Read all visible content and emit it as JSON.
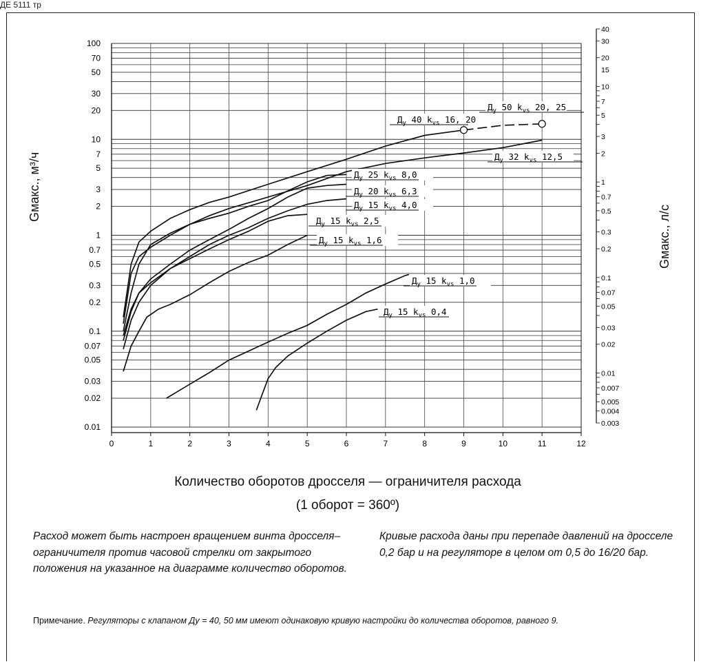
{
  "top_caption": "ДЕ 5111 тр",
  "chart_data": {
    "type": "line",
    "title": "",
    "xlabel_line1": "Количество оборотов дросселя — ограничителя расхода",
    "xlabel_line2": "(1 оборот = 360º)",
    "ylabel_left": "Gмакс., м³/ч",
    "ylabel_right": "Gмакс., л/с",
    "xlim": [
      0,
      12
    ],
    "ylim": [
      0.01,
      100
    ],
    "y_scale": "log",
    "grid": true,
    "x_ticks": [
      "0",
      "1",
      "2",
      "3",
      "4",
      "5",
      "6",
      "7",
      "8",
      "9",
      "10",
      "11",
      "12"
    ],
    "y_ticks_left": [
      {
        "v": 100,
        "t": "100"
      },
      {
        "v": 70,
        "t": "70"
      },
      {
        "v": 50,
        "t": "50"
      },
      {
        "v": 30,
        "t": "30"
      },
      {
        "v": 20,
        "t": "20"
      },
      {
        "v": 10,
        "t": "10"
      },
      {
        "v": 7,
        "t": "7"
      },
      {
        "v": 5,
        "t": "5"
      },
      {
        "v": 3,
        "t": "3"
      },
      {
        "v": 2,
        "t": "2"
      },
      {
        "v": 1,
        "t": "1"
      },
      {
        "v": 0.7,
        "t": "0.7"
      },
      {
        "v": 0.5,
        "t": "0.5"
      },
      {
        "v": 0.3,
        "t": "0.3"
      },
      {
        "v": 0.2,
        "t": "0.2"
      },
      {
        "v": 0.1,
        "t": "0.1"
      },
      {
        "v": 0.07,
        "t": "0.07"
      },
      {
        "v": 0.05,
        "t": "0.05"
      },
      {
        "v": 0.03,
        "t": "0.03"
      },
      {
        "v": 0.02,
        "t": "0.02"
      },
      {
        "v": 0.01,
        "t": "0.01"
      }
    ],
    "y_ticks_right": [
      {
        "v": 40,
        "t": "40"
      },
      {
        "v": 30,
        "t": "30"
      },
      {
        "v": 20,
        "t": "20"
      },
      {
        "v": 15,
        "t": "15"
      },
      {
        "v": 10,
        "t": "10"
      },
      {
        "v": 7,
        "t": "7"
      },
      {
        "v": 5,
        "t": "5"
      },
      {
        "v": 3,
        "t": "3"
      },
      {
        "v": 2,
        "t": "2"
      },
      {
        "v": 1,
        "t": "1"
      },
      {
        "v": 0.7,
        "t": "0.7"
      },
      {
        "v": 0.5,
        "t": "0.5"
      },
      {
        "v": 0.3,
        "t": "0.3"
      },
      {
        "v": 0.2,
        "t": "0.2"
      },
      {
        "v": 0.1,
        "t": "0.1"
      },
      {
        "v": 0.07,
        "t": "0.07"
      },
      {
        "v": 0.05,
        "t": "0.05"
      },
      {
        "v": 0.03,
        "t": "0.03"
      },
      {
        "v": 0.02,
        "t": "0.02"
      },
      {
        "v": 0.01,
        "t": "0.01"
      },
      {
        "v": 0.007,
        "t": "0.007"
      },
      {
        "v": 0.005,
        "t": "0.005"
      },
      {
        "v": 0.004,
        "t": "0.004"
      },
      {
        "v": 0.003,
        "t": "0.003"
      }
    ],
    "series": [
      {
        "name": "Ду 50 kvs 20, 25",
        "label_pre": "Д",
        "label_sub1": "у",
        "label_mid": " 50 k",
        "label_sub2": "vs",
        "label_post": " 20, 25",
        "points": [
          [
            0.3,
            0.14
          ],
          [
            0.5,
            0.5
          ],
          [
            0.7,
            0.85
          ],
          [
            1,
            1.1
          ],
          [
            1.5,
            1.5
          ],
          [
            2,
            1.85
          ],
          [
            2.5,
            2.2
          ],
          [
            3,
            2.5
          ],
          [
            4,
            3.4
          ],
          [
            5,
            4.6
          ],
          [
            6,
            6.2
          ],
          [
            7,
            8.5
          ],
          [
            8,
            11
          ],
          [
            9,
            12.5
          ]
        ],
        "dashed_points": [
          [
            9,
            12.5
          ],
          [
            10,
            14
          ],
          [
            11,
            14.5
          ]
        ],
        "markers": [
          [
            9,
            12.5
          ],
          [
            11,
            14.5
          ]
        ],
        "label_at": [
          11,
          20
        ]
      },
      {
        "name": "Ду 40 kvs 16, 20",
        "label_pre": "Д",
        "label_sub1": "у",
        "label_mid": " 40 k",
        "label_sub2": "vs",
        "label_post": " 16, 20",
        "points": [],
        "dashed_points": [],
        "markers": [],
        "label_at": [
          9,
          12.5
        ]
      },
      {
        "name": "Ду 32 kvs 12,5",
        "label_pre": "Д",
        "label_sub1": "у",
        "label_mid": " 32 k",
        "label_sub2": "vs",
        "label_post": " 12,5",
        "points": [
          [
            0.3,
            0.12
          ],
          [
            0.5,
            0.4
          ],
          [
            0.7,
            0.6
          ],
          [
            1,
            0.75
          ],
          [
            1.5,
            1.0
          ],
          [
            2,
            1.3
          ],
          [
            2.5,
            1.6
          ],
          [
            3,
            1.9
          ],
          [
            4,
            2.5
          ],
          [
            5,
            3.3
          ],
          [
            6,
            4.6
          ],
          [
            7,
            5.6
          ],
          [
            8,
            6.4
          ],
          [
            9,
            7.2
          ],
          [
            10,
            8.2
          ],
          [
            11,
            9.8
          ]
        ],
        "dashed_points": [],
        "markers": [],
        "label_at": [
          11,
          7
        ]
      },
      {
        "name": "Ду 25 kvs 8,0",
        "label_pre": "Д",
        "label_sub1": "у",
        "label_mid": " 25 k",
        "label_sub2": "vs",
        "label_post": " 8,0",
        "points": [
          [
            0.3,
            0.1
          ],
          [
            0.5,
            0.25
          ],
          [
            0.7,
            0.5
          ],
          [
            1,
            0.8
          ],
          [
            1.5,
            1.05
          ],
          [
            2,
            1.3
          ],
          [
            2.5,
            1.5
          ],
          [
            3,
            1.7
          ],
          [
            3.5,
            2.0
          ],
          [
            4,
            2.3
          ],
          [
            4.5,
            2.9
          ],
          [
            5,
            3.6
          ],
          [
            5.5,
            4.2
          ],
          [
            6,
            4.3
          ]
        ],
        "dashed_points": [],
        "markers": [],
        "label_at": [
          6,
          4.3
        ]
      },
      {
        "name": "Ду 20 kvs 6,3",
        "label_pre": "Д",
        "label_sub1": "у",
        "label_mid": " 20 k",
        "label_sub2": "vs",
        "label_post": " 6,3",
        "points": [
          [
            0.3,
            0.08
          ],
          [
            0.5,
            0.16
          ],
          [
            0.7,
            0.25
          ],
          [
            1,
            0.35
          ],
          [
            1.5,
            0.5
          ],
          [
            2,
            0.7
          ],
          [
            2.5,
            0.9
          ],
          [
            3,
            1.15
          ],
          [
            3.5,
            1.5
          ],
          [
            4,
            1.9
          ],
          [
            4.5,
            2.5
          ],
          [
            5,
            3.1
          ],
          [
            5.5,
            3.3
          ],
          [
            6,
            3.4
          ]
        ],
        "dashed_points": [],
        "markers": [],
        "label_at": [
          6,
          3.4
        ]
      },
      {
        "name": "Ду 15 kvs 4,0",
        "label_pre": "Д",
        "label_sub1": "у",
        "label_mid": " 15 k",
        "label_sub2": "vs",
        "label_post": " 4,0",
        "points": [
          [
            0.3,
            0.065
          ],
          [
            0.5,
            0.13
          ],
          [
            0.7,
            0.2
          ],
          [
            1,
            0.3
          ],
          [
            1.5,
            0.45
          ],
          [
            2,
            0.6
          ],
          [
            2.5,
            0.8
          ],
          [
            3,
            1.0
          ],
          [
            3.5,
            1.2
          ],
          [
            4,
            1.5
          ],
          [
            4.5,
            1.8
          ],
          [
            5,
            2.1
          ],
          [
            5.5,
            2.3
          ],
          [
            6,
            2.4
          ]
        ],
        "dashed_points": [],
        "markers": [],
        "label_at": [
          6,
          2.4
        ]
      },
      {
        "name": "Ду 15 kvs 2,5",
        "label_pre": "Д",
        "label_sub1": "у",
        "label_mid": " 15 k",
        "label_sub2": "vs",
        "label_post": " 2,5",
        "points": [
          [
            0.3,
            0.09
          ],
          [
            0.5,
            0.17
          ],
          [
            0.7,
            0.25
          ],
          [
            1,
            0.32
          ],
          [
            1.5,
            0.45
          ],
          [
            2,
            0.57
          ],
          [
            2.5,
            0.72
          ],
          [
            3,
            0.9
          ],
          [
            3.5,
            1.1
          ],
          [
            4,
            1.4
          ],
          [
            4.5,
            1.6
          ],
          [
            5,
            1.65
          ]
        ],
        "dashed_points": [],
        "markers": [],
        "label_at": [
          5,
          1.65
        ]
      },
      {
        "name": "Ду 15 kvs 1,6",
        "label_pre": "Д",
        "label_sub1": "у",
        "label_mid": " 15 k",
        "label_sub2": "vs",
        "label_post": " 1,6",
        "points": [
          [
            0.3,
            0.038
          ],
          [
            0.5,
            0.07
          ],
          [
            0.7,
            0.1
          ],
          [
            0.9,
            0.14
          ],
          [
            1.2,
            0.17
          ],
          [
            1.5,
            0.19
          ],
          [
            2,
            0.24
          ],
          [
            2.5,
            0.32
          ],
          [
            3,
            0.42
          ],
          [
            3.5,
            0.52
          ],
          [
            4,
            0.62
          ],
          [
            4.5,
            0.8
          ],
          [
            5,
            1.0
          ]
        ],
        "dashed_points": [],
        "markers": [],
        "label_at": [
          5,
          1.0
        ]
      },
      {
        "name": "Ду 15 kvs 1,0",
        "label_pre": "Д",
        "label_sub1": "у",
        "label_mid": " 15 k",
        "label_sub2": "vs",
        "label_post": " 1,0",
        "points": [
          [
            1.4,
            0.02
          ],
          [
            2,
            0.028
          ],
          [
            2.5,
            0.037
          ],
          [
            3,
            0.05
          ],
          [
            3.5,
            0.062
          ],
          [
            4,
            0.077
          ],
          [
            4.5,
            0.095
          ],
          [
            5,
            0.115
          ],
          [
            5.5,
            0.15
          ],
          [
            6,
            0.19
          ],
          [
            6.5,
            0.25
          ],
          [
            7,
            0.31
          ],
          [
            7.5,
            0.38
          ],
          [
            7.6,
            0.39
          ]
        ],
        "dashed_points": [],
        "markers": [],
        "label_at": [
          7.6,
          0.3
        ]
      },
      {
        "name": "Ду 15 kvs 0,4",
        "label_pre": "Д",
        "label_sub1": "у",
        "label_mid": " 15 k",
        "label_sub2": "vs",
        "label_post": " 0,4",
        "points": [
          [
            3.7,
            0.015
          ],
          [
            3.85,
            0.022
          ],
          [
            4,
            0.032
          ],
          [
            4.2,
            0.042
          ],
          [
            4.5,
            0.055
          ],
          [
            5,
            0.075
          ],
          [
            5.5,
            0.1
          ],
          [
            6,
            0.13
          ],
          [
            6.5,
            0.16
          ],
          [
            6.8,
            0.17
          ]
        ],
        "dashed_points": [],
        "markers": [],
        "label_at": [
          6.8,
          0.17
        ]
      }
    ]
  },
  "notes": {
    "left": "Расход может быть настроен вращением винта дросселя–ограничителя против часовой стрелки от закрытого  положения на указанное на диаграмме количество оборотов.",
    "right": "Кривые расхода даны при перепаде давлений на дросселе 0,2 бар и на регуляторе в целом от 0,5 до 16/20 бар."
  },
  "footnote": {
    "lead": "Примечание.",
    "text": " Регуляторы с клапаном Ду = 40, 50 мм имеют одинаковую кривую настройки до количества оборотов, равного 9."
  }
}
